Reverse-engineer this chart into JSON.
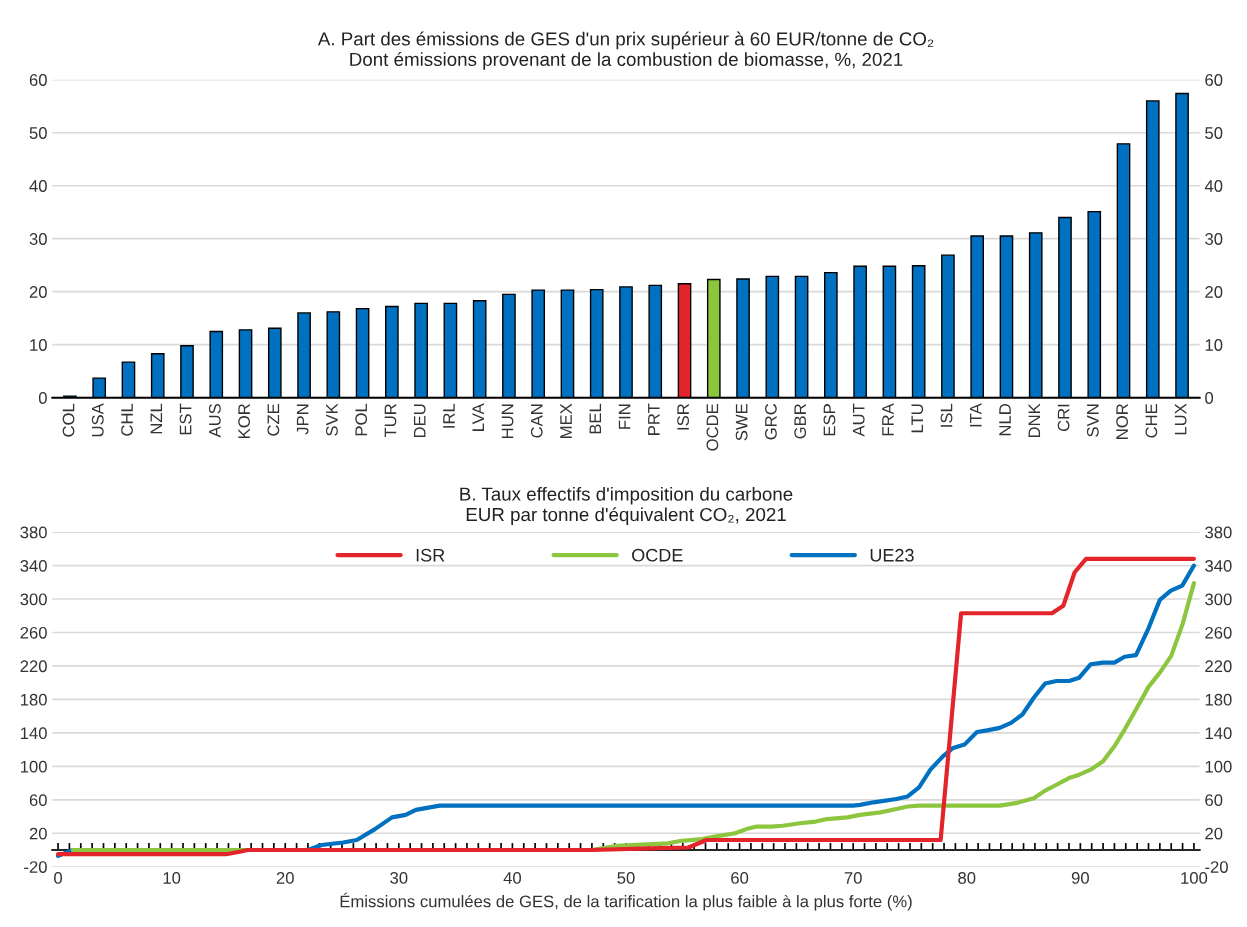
{
  "chart_data": [
    {
      "type": "bar",
      "title": "A. Part des émissions de GES d'un prix supérieur à 60 EUR/tonne de CO₂",
      "subtitle": "Dont émissions provenant de la combustion de biomasse, %, 2021",
      "categories": [
        "COL",
        "USA",
        "CHL",
        "NZL",
        "EST",
        "AUS",
        "KOR",
        "CZE",
        "JPN",
        "SVK",
        "POL",
        "TUR",
        "DEU",
        "IRL",
        "LVA",
        "HUN",
        "CAN",
        "MEX",
        "BEL",
        "FIN",
        "PRT",
        "ISR",
        "OCDE",
        "SWE",
        "GRC",
        "GBR",
        "ESP",
        "AUT",
        "FRA",
        "LTU",
        "ISL",
        "ITA",
        "NLD",
        "DNK",
        "CRI",
        "SVN",
        "NOR",
        "CHE",
        "LUX"
      ],
      "values": [
        0.3,
        3.7,
        6.7,
        8.3,
        9.8,
        12.5,
        12.8,
        13.1,
        16.0,
        16.2,
        16.8,
        17.2,
        17.8,
        17.8,
        18.3,
        19.5,
        20.3,
        20.3,
        20.4,
        20.9,
        21.2,
        21.5,
        22.3,
        22.4,
        22.9,
        22.9,
        23.6,
        24.8,
        24.8,
        24.9,
        26.9,
        30.5,
        30.5,
        31.1,
        34.0,
        35.1,
        47.9,
        56.0,
        57.4
      ],
      "colors": [
        "#0070c0",
        "#0070c0",
        "#0070c0",
        "#0070c0",
        "#0070c0",
        "#0070c0",
        "#0070c0",
        "#0070c0",
        "#0070c0",
        "#0070c0",
        "#0070c0",
        "#0070c0",
        "#0070c0",
        "#0070c0",
        "#0070c0",
        "#0070c0",
        "#0070c0",
        "#0070c0",
        "#0070c0",
        "#0070c0",
        "#0070c0",
        "#e3242b",
        "#8cc63f",
        "#0070c0",
        "#0070c0",
        "#0070c0",
        "#0070c0",
        "#0070c0",
        "#0070c0",
        "#0070c0",
        "#0070c0",
        "#0070c0",
        "#0070c0",
        "#0070c0",
        "#0070c0",
        "#0070c0",
        "#0070c0",
        "#0070c0",
        "#0070c0"
      ],
      "ylim": [
        0,
        60
      ],
      "yticks": [
        0,
        10,
        20,
        30,
        40,
        50,
        60
      ],
      "y2lim": [
        0,
        60
      ],
      "y2ticks": [
        0,
        10,
        20,
        30,
        40,
        50,
        60
      ],
      "grid": "y"
    },
    {
      "type": "line",
      "title": "B. Taux effectifs d'imposition du carbone",
      "subtitle": "EUR par tonne d'équivalent CO₂, 2021",
      "xlabel": "Émissions cumulées de GES, de la tarification la plus faible à la plus forte (%)",
      "series": [
        {
          "name": "ISR",
          "color": "#e3242b",
          "x": [
            0,
            14.8,
            16.0,
            16.7,
            47,
            52,
            55.5,
            57.1,
            77.7,
            79.5,
            87.5,
            88.5,
            89.5,
            90.5,
            100
          ],
          "values": [
            -5,
            -5,
            -2,
            0,
            0,
            2,
            3,
            12,
            12,
            283,
            283,
            292,
            332,
            348,
            348
          ]
        },
        {
          "name": "OCDE",
          "color": "#8cc63f",
          "x": [
            1.3,
            47,
            49.2,
            53.7,
            54.9,
            56.7,
            57.8,
            59.6,
            60.6,
            61.5,
            62.8,
            63.8,
            65.3,
            66.7,
            67.7,
            69.5,
            70.6,
            72.4,
            73.8,
            74.8,
            75.8,
            82.9,
            84.3,
            85.9,
            86.9,
            87.9,
            89.0,
            89.9,
            90.9,
            92.0,
            93.0,
            93.9,
            94.9,
            96.0,
            97.0,
            98.0,
            99.0,
            100
          ],
          "values": [
            0,
            0,
            5,
            8,
            11,
            13,
            16,
            20,
            25,
            28,
            28,
            29,
            32,
            34,
            37,
            39,
            42,
            45,
            49,
            52,
            53,
            53,
            56,
            62,
            71,
            78,
            86,
            90,
            96,
            106,
            124,
            144,
            168,
            195,
            212,
            232,
            270,
            319
          ]
        },
        {
          "name": "UE23",
          "color": "#0070c0",
          "x": [
            0,
            1.3,
            22.0,
            23.2,
            25.1,
            26.3,
            27.9,
            29.4,
            30.6,
            31.5,
            33.6,
            70.0,
            70.6,
            71.8,
            73.8,
            74.8,
            75.8,
            76.8,
            77.9,
            78.8,
            79.8,
            80.9,
            81.8,
            82.9,
            83.9,
            84.9,
            85.9,
            86.9,
            87.9,
            89.0,
            89.9,
            90.9,
            92.0,
            93.0,
            93.9,
            94.9,
            96.0,
            97.0,
            97.97,
            98.97,
            100
          ],
          "values": [
            -7,
            0,
            0,
            6,
            9,
            12,
            25,
            39,
            42,
            48,
            53,
            53,
            54,
            57,
            61,
            64,
            75,
            96,
            112,
            122,
            126,
            141,
            143,
            146,
            152,
            162,
            182,
            199,
            202,
            202,
            206,
            222,
            224,
            224,
            231,
            233,
            265,
            299,
            310,
            316,
            340
          ]
        }
      ],
      "xlim": [
        -0.5,
        100.5
      ],
      "xticks": [
        0,
        10,
        20,
        30,
        40,
        50,
        60,
        70,
        80,
        90,
        100
      ],
      "ylim": [
        -20,
        380
      ],
      "yticks": [
        -20,
        20,
        60,
        100,
        140,
        180,
        220,
        260,
        300,
        340,
        380
      ],
      "y2lim": [
        -20,
        380
      ],
      "y2ticks": [
        -20,
        20,
        60,
        100,
        140,
        180,
        220,
        260,
        300,
        340,
        380
      ],
      "grid": "y",
      "legend": "top"
    }
  ]
}
